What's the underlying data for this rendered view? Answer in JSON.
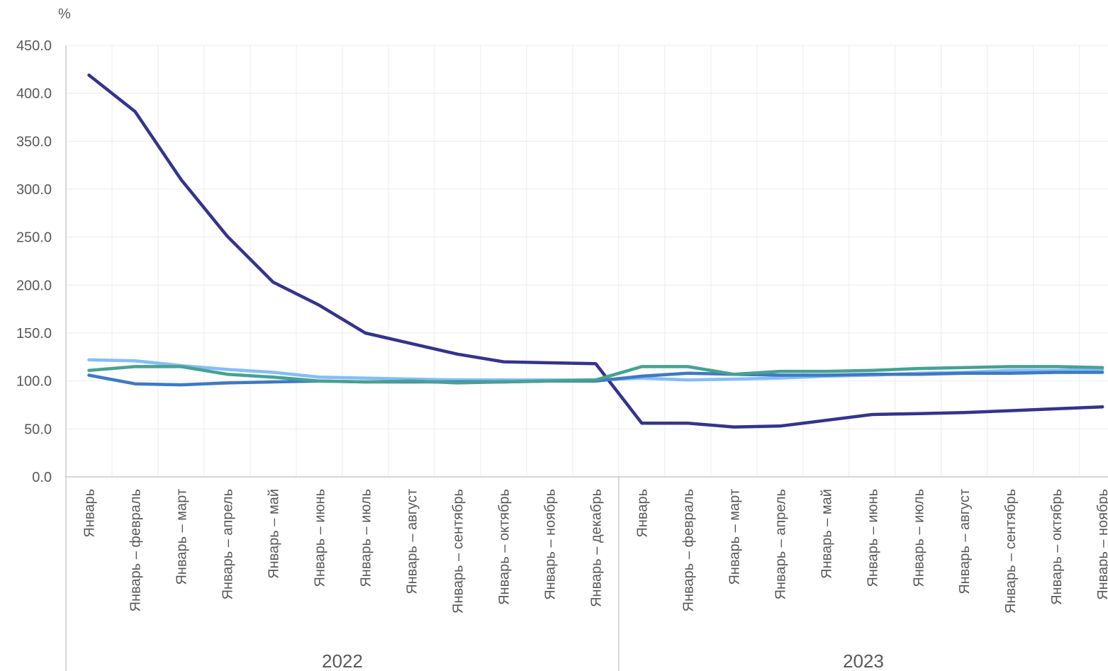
{
  "chart_data": {
    "type": "line",
    "unit": "%",
    "ylim": [
      0,
      450
    ],
    "yticks": [
      "0.0",
      "50.0",
      "100.0",
      "150.0",
      "200.0",
      "250.0",
      "300.0",
      "350.0",
      "400.0",
      "450.0"
    ],
    "grid": true,
    "legend": "none",
    "groups": [
      {
        "year": "2022",
        "count": 12
      },
      {
        "year": "2023",
        "count": 11
      }
    ],
    "categories": [
      "Январь",
      "Январь – февраль",
      "Январь – март",
      "Январь – апрель",
      "Январь – май",
      "Январь – июнь",
      "Январь – июль",
      "Январь – август",
      "Январь – сентябрь",
      "Январь – октябрь",
      "Январь – ноябрь",
      "Январь – декабрь",
      "Январь",
      "Январь – февраль",
      "Январь – март",
      "Январь – апрель",
      "Январь – май",
      "Январь – июнь",
      "Январь – июль",
      "Январь – август",
      "Январь – сентябрь",
      "Январь – октябрь",
      "Январь – ноябрь"
    ],
    "series": [
      {
        "color": "#33338f",
        "values": [
          419,
          381,
          310,
          251,
          203,
          179,
          150,
          139,
          128,
          120,
          119,
          118,
          56,
          56,
          52,
          53,
          59,
          65,
          66,
          67,
          69,
          71,
          73
        ]
      },
      {
        "color": "#85bdf7",
        "values": [
          122,
          121,
          116,
          112,
          109,
          104,
          103,
          102,
          101,
          101,
          101,
          101,
          103,
          101,
          102,
          103,
          105,
          106,
          108,
          109,
          111,
          111,
          112
        ]
      },
      {
        "color": "#3e79c4",
        "values": [
          106,
          97,
          96,
          98,
          99,
          100,
          99,
          99,
          99,
          99,
          100,
          100,
          105,
          108,
          107,
          106,
          106,
          107,
          107,
          108,
          108,
          109,
          109
        ]
      },
      {
        "color": "#46a290",
        "values": [
          111,
          115,
          115,
          107,
          104,
          100,
          99,
          100,
          98,
          99,
          100,
          101,
          115,
          115,
          107,
          110,
          110,
          111,
          113,
          114,
          115,
          115,
          114
        ]
      }
    ]
  }
}
